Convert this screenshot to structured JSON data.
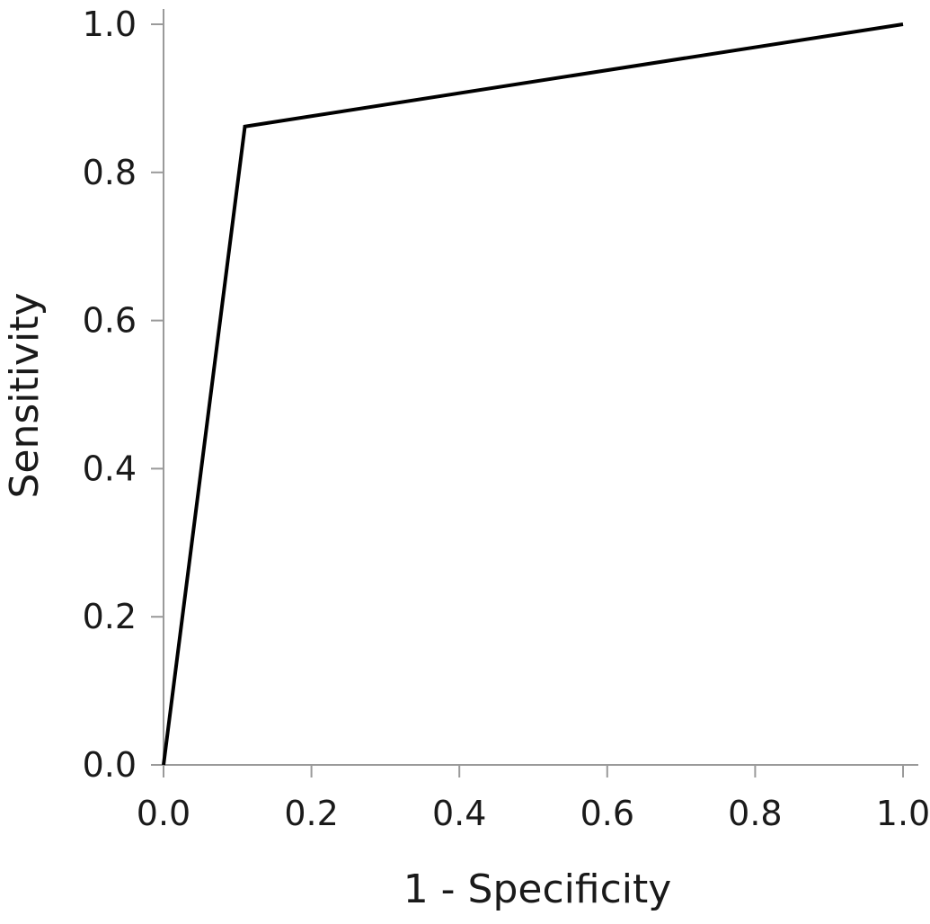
{
  "chart_data": {
    "type": "line",
    "title": "",
    "xlabel": "1 - Specificity",
    "ylabel": "Sensitivity",
    "xlim": [
      0,
      1
    ],
    "ylim": [
      0,
      1
    ],
    "xticks": [
      0.0,
      0.2,
      0.4,
      0.6,
      0.8,
      1.0
    ],
    "xtick_labels": [
      "0.0",
      "0.2",
      "0.4",
      "0.6",
      "0.8",
      "1.0"
    ],
    "yticks": [
      0.0,
      0.2,
      0.4,
      0.6,
      0.8,
      1.0
    ],
    "ytick_labels": [
      "0.0",
      "0.2",
      "0.4",
      "0.6",
      "0.8",
      "1.0"
    ],
    "grid": false,
    "series": [
      {
        "x": [
          0.0,
          0.11,
          1.0
        ],
        "y": [
          0.0,
          0.862,
          1.0
        ],
        "color": "#000000"
      }
    ]
  }
}
